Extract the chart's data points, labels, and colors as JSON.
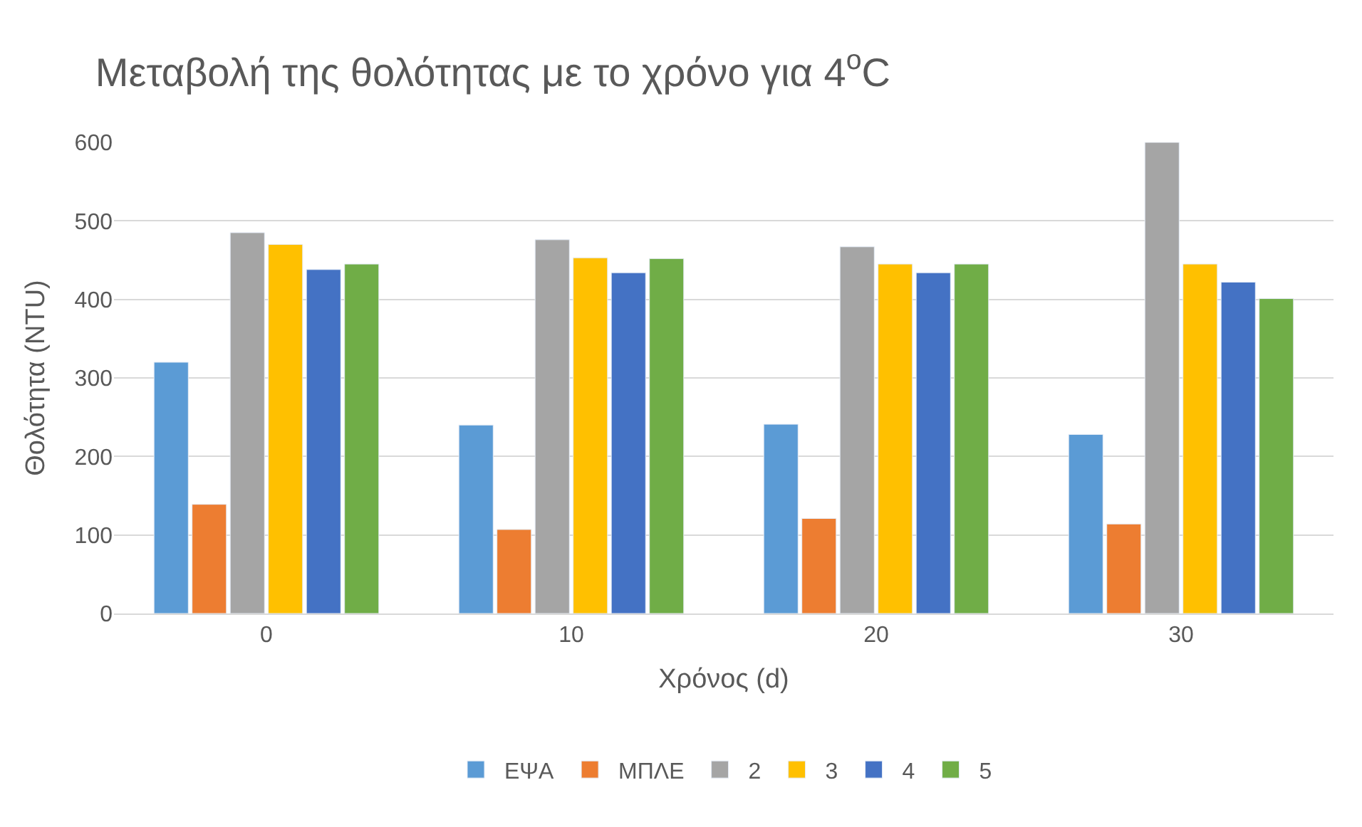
{
  "chart_data": {
    "type": "bar",
    "title": "Μεταβολή της θολότητας με το χρόνο για 4$^{o}$C",
    "xlabel": "Χρόνος (d)",
    "ylabel": "Θολότητα (NTU)",
    "categories": [
      "0",
      "10",
      "20",
      "30"
    ],
    "series": [
      {
        "name": "ΕΨΑ",
        "color": "#5b9bd5",
        "values": [
          320,
          240,
          241,
          228
        ]
      },
      {
        "name": "ΜΠΛΕ",
        "color": "#ed7d31",
        "values": [
          139,
          107,
          121,
          114
        ]
      },
      {
        "name": "2",
        "color": "#a5a5a5",
        "values": [
          485,
          476,
          467,
          600
        ]
      },
      {
        "name": "3",
        "color": "#ffc000",
        "values": [
          470,
          453,
          445,
          445
        ]
      },
      {
        "name": "4",
        "color": "#4472c4",
        "values": [
          438,
          434,
          434,
          422
        ]
      },
      {
        "name": "5",
        "color": "#70ad47",
        "values": [
          445,
          452,
          445,
          401
        ]
      }
    ],
    "ylim": [
      0,
      600
    ],
    "yticks": [
      0,
      100,
      200,
      300,
      400,
      500,
      600
    ],
    "grid": "y",
    "legend": "bottom"
  }
}
